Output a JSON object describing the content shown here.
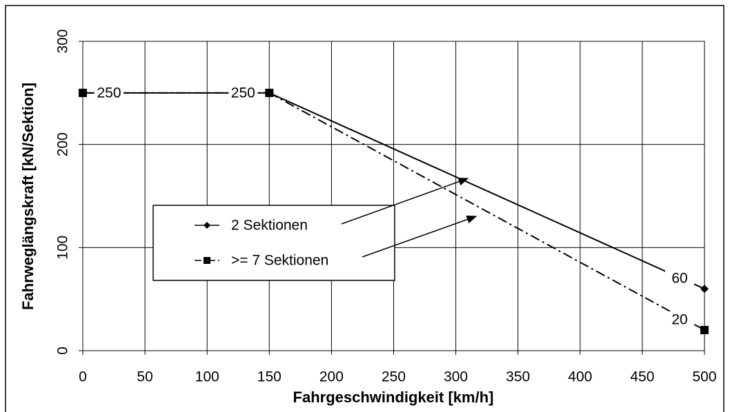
{
  "chart_data": {
    "type": "line",
    "xlabel": "Fahrgeschwindigkeit [km/h]",
    "ylabel": "Fahrweglängskraft [kN/Sektion]",
    "xlim": [
      0,
      500
    ],
    "xticks": [
      0,
      50,
      100,
      150,
      200,
      250,
      300,
      350,
      400,
      450,
      500
    ],
    "ylim": [
      0,
      300
    ],
    "yticks": [
      0,
      100,
      200,
      300
    ],
    "grid": true,
    "series": [
      {
        "name": "2 Sektionen",
        "color": "#000000",
        "marker": "diamond",
        "dash": "solid",
        "x": [
          0,
          150,
          500
        ],
        "values": [
          250,
          250,
          60
        ],
        "label_points": [
          2
        ]
      },
      {
        "name": ">= 7 Sektionen",
        "color": "#000000",
        "marker": "square",
        "dash": "dashdot",
        "x": [
          0,
          150,
          500
        ],
        "values": [
          250,
          250,
          20
        ],
        "label_points": [
          0,
          1,
          2
        ]
      }
    ]
  }
}
